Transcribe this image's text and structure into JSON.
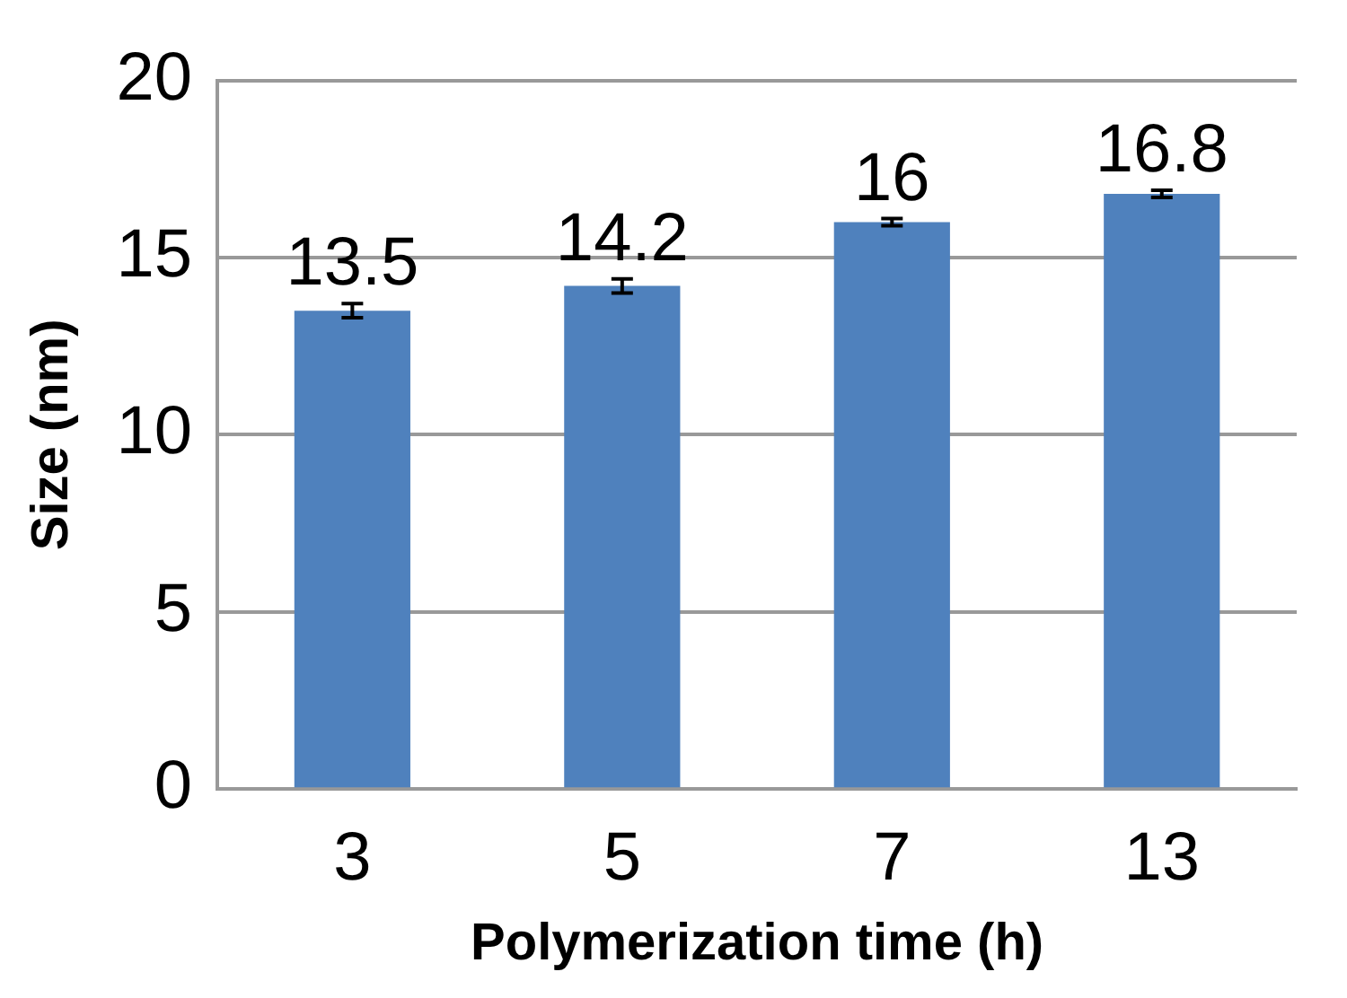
{
  "chart_data": {
    "type": "bar",
    "xlabel": "Polymerization time (h)",
    "ylabel": "Size (nm)",
    "categories": [
      "3",
      "5",
      "7",
      "13"
    ],
    "values": [
      13.5,
      14.2,
      16,
      16.8
    ],
    "errors": [
      0.2,
      0.2,
      0.1,
      0.1
    ],
    "color": "#4f81bd",
    "data_labels": true,
    "ylim": [
      0,
      20
    ],
    "yticks": [
      0,
      5,
      10,
      15,
      20
    ],
    "grid": "y",
    "legend": false
  }
}
